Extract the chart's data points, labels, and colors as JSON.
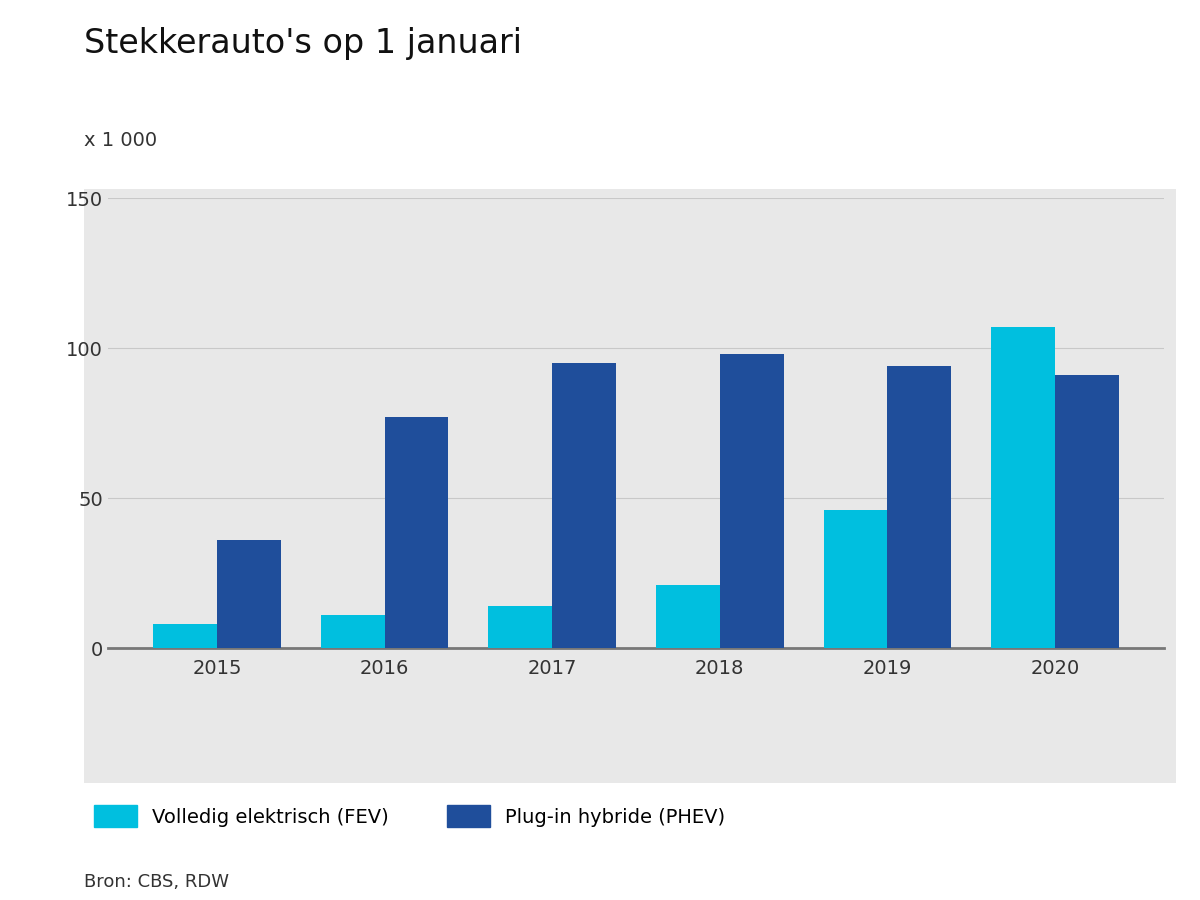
{
  "title": "Stekkerauto's op 1 januari",
  "ylabel": "x 1 000",
  "years": [
    2015,
    2016,
    2017,
    2018,
    2019,
    2020
  ],
  "fev_values": [
    8,
    11,
    14,
    21,
    46,
    107
  ],
  "phev_values": [
    36,
    77,
    95,
    98,
    94,
    91
  ],
  "fev_color": "#00BFDF",
  "phev_color": "#1F4E9B",
  "ylim": [
    0,
    150
  ],
  "yticks": [
    0,
    50,
    100,
    150
  ],
  "bar_width": 0.38,
  "background_chart": "#E8E8E8",
  "background_fig": "#FFFFFF",
  "legend_fev": "Volledig elektrisch (FEV)",
  "legend_phev": "Plug-in hybride (PHEV)",
  "source": "Bron: CBS, RDW",
  "title_fontsize": 24,
  "axis_fontsize": 14,
  "legend_fontsize": 14,
  "source_fontsize": 13,
  "grid_color": "#C8C8C8",
  "bottom_bar_color": "#888888"
}
